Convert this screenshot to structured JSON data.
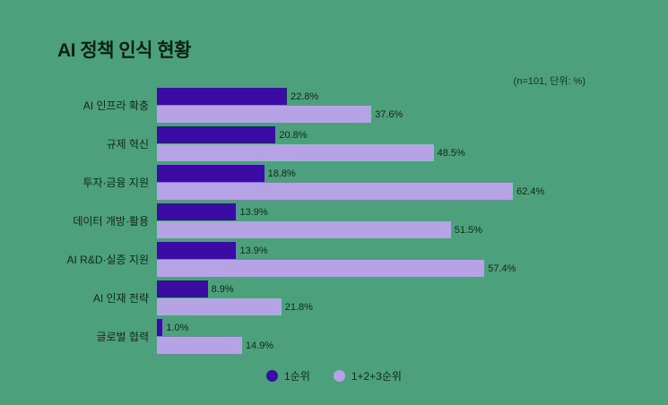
{
  "title": "AI 정책 인식 현황",
  "note": "(n=101, 단위: %)",
  "colors": {
    "background": "#4DA07C",
    "title_text": "#0C2118",
    "label_text": "#0F271B",
    "primary_bar": "#3A0CA3",
    "secondary_bar": "#B5A3E6"
  },
  "chart_data": {
    "type": "bar",
    "orientation": "horizontal",
    "title": "AI 정책 인식 현황",
    "subtitle_note": "(n=101, 단위: %)",
    "unit": "%",
    "xlim": [
      0,
      66
    ],
    "grid": false,
    "legend_position": "bottom",
    "categories": [
      "AI 인프라 확충",
      "규제 혁신",
      "투자·금융 지원",
      "데이터 개방·활용",
      "AI R&D·실증 지원",
      "AI 인재 전략",
      "글로벌 협력"
    ],
    "series": [
      {
        "name": "1순위",
        "color": "#3A0CA3",
        "values": [
          22.8,
          20.8,
          18.8,
          13.9,
          13.9,
          8.9,
          1.0
        ]
      },
      {
        "name": "1+2+3순위",
        "color": "#B5A3E6",
        "values": [
          37.6,
          48.5,
          62.4,
          51.5,
          57.4,
          21.8,
          14.9
        ]
      }
    ]
  }
}
